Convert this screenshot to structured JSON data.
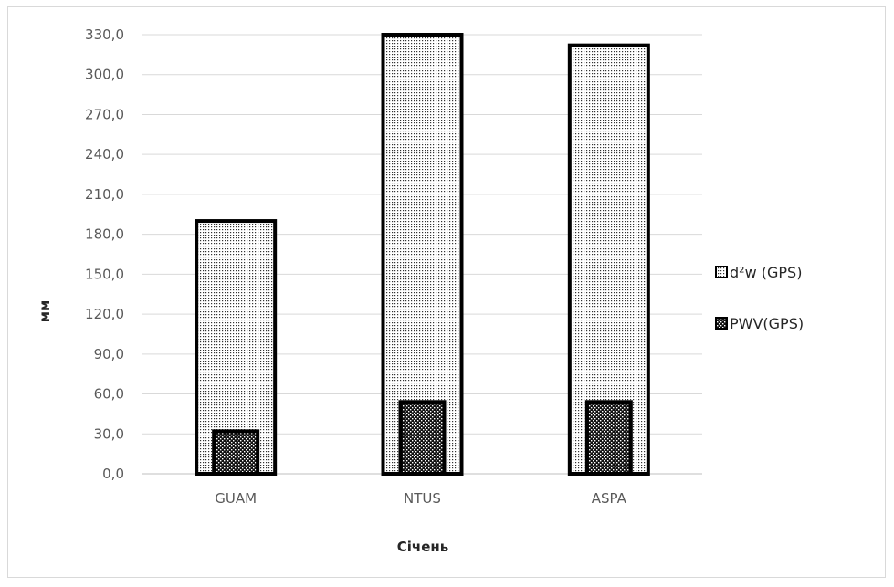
{
  "chart_data": {
    "type": "bar",
    "title": "",
    "xlabel": "Січень",
    "ylabel": "мм",
    "categories": [
      "GUAM",
      "NTUS",
      "ASPA"
    ],
    "series": [
      {
        "name": "d²w (GPS)",
        "values": [
          190.0,
          330.0,
          322.0
        ],
        "pattern": "fine-dots"
      },
      {
        "name": "PWV(GPS)",
        "values": [
          32.0,
          54.0,
          54.0
        ],
        "pattern": "coarse-dots"
      }
    ],
    "ylim": [
      0,
      330
    ],
    "yticks": [
      "0,0",
      "30,0",
      "60,0",
      "90,0",
      "120,0",
      "150,0",
      "180,0",
      "210,0",
      "240,0",
      "270,0",
      "300,0",
      "330,0"
    ],
    "grid": true,
    "legend_position": "right",
    "colors": {
      "bar_edge": "#000000",
      "grid": "#d9d9d9",
      "tick_text": "#595959"
    }
  }
}
